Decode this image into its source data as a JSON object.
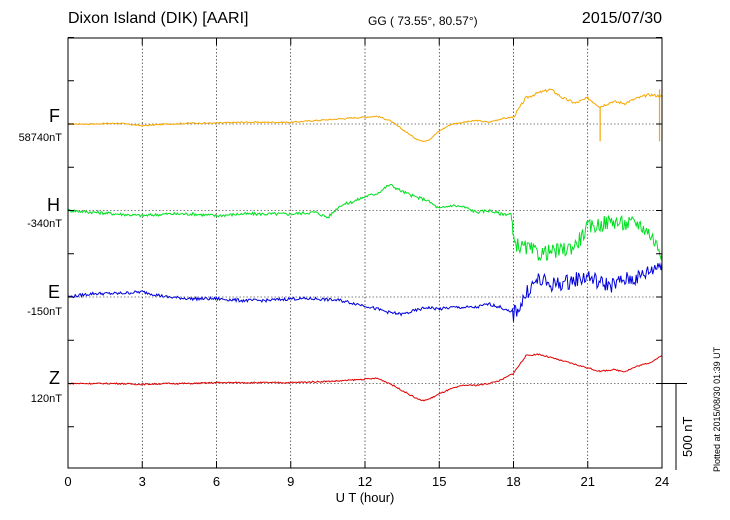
{
  "header": {
    "station": "Dixon Island (DIK)  [AARI]",
    "coords": "GG ( 73.55°,  80.57°)",
    "date": "2015/07/30"
  },
  "plotted_note": "Plotted at 2015/08/30 01:39 UT",
  "components": [
    {
      "key": "F",
      "label": "F",
      "baseline": "58740nT",
      "color": "#f5a800"
    },
    {
      "key": "H",
      "label": "H",
      "baseline": "-340nT",
      "color": "#00e020"
    },
    {
      "key": "E",
      "label": "E",
      "baseline": "-150nT",
      "color": "#0000dd"
    },
    {
      "key": "Z",
      "label": "Z",
      "baseline": "120nT",
      "color": "#e00000"
    }
  ],
  "chart_data": {
    "type": "line",
    "title": "Dixon Island (DIK)  [AARI]",
    "xlabel": "U T (hour)",
    "xlim": [
      0,
      24
    ],
    "xticks": [
      "0",
      "3",
      "6",
      "9",
      "12",
      "15",
      "18",
      "21",
      "24"
    ],
    "ylim": [
      -1750,
      1000
    ],
    "scale_bar": {
      "label": "500 nT",
      "value_nT": 500
    },
    "series": [
      {
        "name": "F",
        "color": "#f5a800",
        "offset_nT": 0,
        "x": [
          0,
          1,
          2,
          3,
          4,
          5,
          6,
          7,
          8,
          9,
          10,
          11,
          12,
          12.5,
          13,
          13.5,
          14,
          14.3,
          14.6,
          15,
          15.5,
          16,
          16.5,
          17,
          17.5,
          18,
          18.5,
          19,
          19.5,
          20,
          20.5,
          21,
          21.5,
          22,
          22.5,
          23,
          23.5,
          24
        ],
        "y": [
          0,
          0,
          5,
          -10,
          0,
          5,
          5,
          10,
          10,
          10,
          20,
          30,
          40,
          45,
          20,
          -30,
          -80,
          -100,
          -90,
          -40,
          0,
          10,
          20,
          10,
          30,
          40,
          150,
          180,
          200,
          150,
          120,
          150,
          100,
          130,
          120,
          150,
          170,
          160
        ]
      },
      {
        "name": "H",
        "color": "#00e020",
        "offset_nT": -500,
        "x": [
          0,
          1,
          2,
          3,
          4,
          5,
          6,
          7,
          8,
          9,
          10,
          10.5,
          11,
          11.5,
          12,
          12.5,
          13,
          13.5,
          14,
          14.5,
          15,
          15.5,
          16,
          16.5,
          17,
          17.5,
          17.9,
          18,
          18.3,
          18.6,
          19,
          19.5,
          20,
          20.5,
          21,
          21.5,
          22,
          22.5,
          23,
          23.5,
          24
        ],
        "y": [
          0,
          -10,
          -20,
          -30,
          -20,
          -20,
          -30,
          -20,
          -20,
          -20,
          -10,
          -40,
          30,
          50,
          80,
          100,
          150,
          110,
          80,
          60,
          10,
          30,
          20,
          -10,
          0,
          -20,
          -20,
          -180,
          -210,
          -220,
          -250,
          -240,
          -230,
          -200,
          -100,
          -80,
          -60,
          -80,
          -70,
          -130,
          -250
        ]
      },
      {
        "name": "E",
        "color": "#0000dd",
        "offset_nT": -1000,
        "x": [
          0,
          1,
          2,
          3,
          4,
          5,
          6,
          7,
          8,
          9,
          10,
          11,
          12,
          13,
          13.5,
          14,
          14.5,
          15,
          15.5,
          16,
          16.5,
          17,
          17.5,
          18,
          18.3,
          18.6,
          19,
          19.5,
          20,
          20.5,
          21,
          21.5,
          22,
          22.5,
          23,
          23.5,
          24
        ],
        "y": [
          0,
          20,
          20,
          30,
          0,
          -10,
          -10,
          -20,
          -20,
          -10,
          -10,
          -20,
          -50,
          -90,
          -100,
          -80,
          -60,
          -70,
          -60,
          -60,
          -60,
          -40,
          -60,
          -100,
          -40,
          40,
          100,
          70,
          80,
          100,
          120,
          80,
          70,
          100,
          110,
          150,
          200
        ]
      },
      {
        "name": "Z",
        "color": "#e00000",
        "offset_nT": -1500,
        "x": [
          0,
          1,
          2,
          3,
          4,
          5,
          6,
          7,
          8,
          9,
          10,
          11,
          12,
          12.5,
          13,
          13.5,
          14,
          14.3,
          14.6,
          15,
          15.5,
          16,
          16.5,
          17,
          17.5,
          18,
          18.5,
          19,
          19.5,
          20,
          20.5,
          21,
          21.5,
          22,
          22.5,
          23,
          23.5,
          24
        ],
        "y": [
          0,
          0,
          0,
          -5,
          0,
          0,
          5,
          5,
          5,
          5,
          10,
          15,
          25,
          30,
          0,
          -40,
          -80,
          -100,
          -90,
          -60,
          -30,
          -10,
          -10,
          0,
          20,
          60,
          160,
          170,
          150,
          130,
          110,
          90,
          70,
          80,
          70,
          100,
          120,
          160
        ]
      }
    ]
  }
}
